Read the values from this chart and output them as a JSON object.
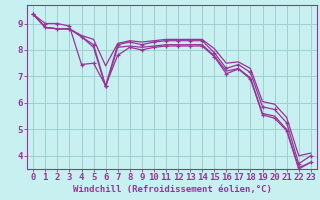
{
  "title": "Windchill (Refroidissement éolien,°C)",
  "bg_color": "#c8f0f0",
  "grid_color": "#99cccc",
  "line_color": "#993399",
  "xlim": [
    -0.5,
    23.5
  ],
  "ylim": [
    3.5,
    9.7
  ],
  "xticks": [
    0,
    1,
    2,
    3,
    4,
    5,
    6,
    7,
    8,
    9,
    10,
    11,
    12,
    13,
    14,
    15,
    16,
    17,
    18,
    19,
    20,
    21,
    22,
    23
  ],
  "yticks": [
    4,
    5,
    6,
    7,
    8,
    9
  ],
  "series": [
    [
      9.35,
      8.85,
      8.8,
      8.8,
      8.5,
      8.2,
      6.65,
      8.2,
      8.3,
      8.2,
      8.3,
      8.35,
      8.35,
      8.35,
      8.35,
      7.9,
      7.3,
      7.45,
      7.15,
      5.85,
      5.75,
      5.25,
      3.7,
      4.0
    ],
    [
      9.35,
      8.85,
      8.8,
      8.8,
      8.55,
      8.4,
      7.4,
      8.25,
      8.35,
      8.3,
      8.35,
      8.4,
      8.4,
      8.4,
      8.4,
      8.05,
      7.5,
      7.55,
      7.3,
      6.05,
      5.95,
      5.45,
      4.0,
      4.1
    ],
    [
      9.35,
      8.85,
      8.8,
      8.8,
      8.5,
      8.1,
      6.6,
      8.1,
      8.15,
      8.1,
      8.15,
      8.2,
      8.2,
      8.2,
      8.2,
      7.78,
      7.2,
      7.3,
      6.95,
      5.6,
      5.5,
      5.0,
      3.55,
      3.75
    ],
    [
      9.35,
      9.0,
      9.0,
      8.9,
      7.45,
      7.5,
      6.65,
      7.8,
      8.1,
      8.0,
      8.1,
      8.15,
      8.15,
      8.15,
      8.15,
      7.75,
      7.1,
      7.28,
      6.9,
      5.55,
      5.42,
      4.95,
      3.5,
      3.75
    ]
  ],
  "markers": [
    true,
    false,
    false,
    true
  ],
  "xlabel_fontsize": 6.5,
  "tick_fontsize": 6.5,
  "label_color": "#993399",
  "spine_color": "#993399"
}
